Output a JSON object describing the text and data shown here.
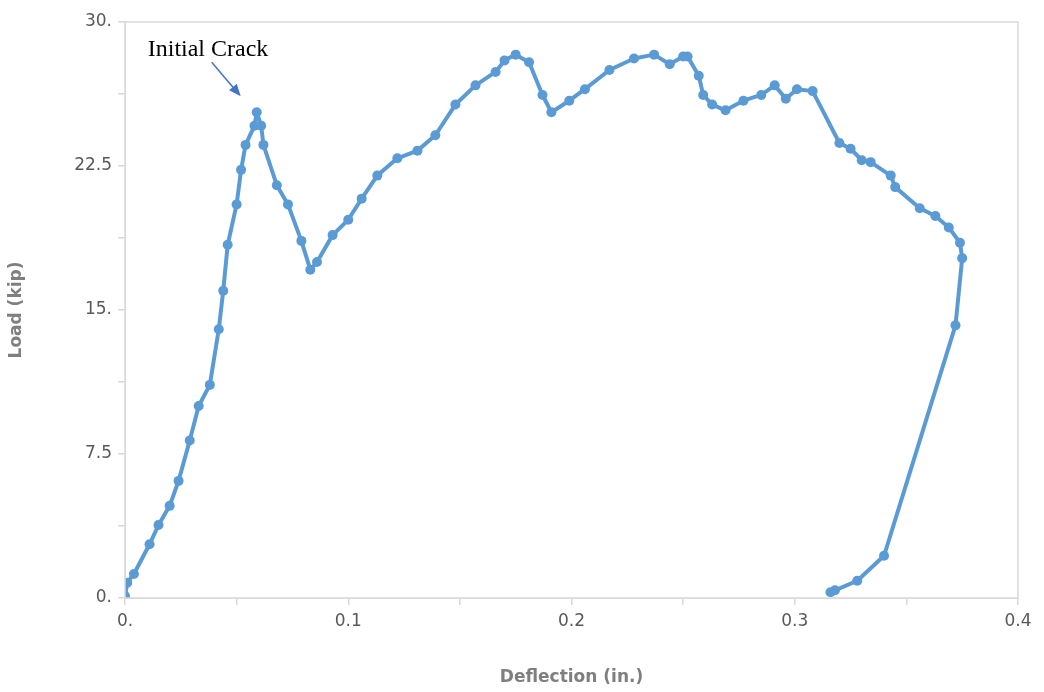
{
  "chart_data": {
    "type": "line",
    "xlabel": "Deflection (in.)",
    "ylabel": "Load (kip)",
    "xlim": [
      0,
      0.4
    ],
    "ylim": [
      0,
      30
    ],
    "xticks": [
      {
        "value": 0,
        "label": "0."
      },
      {
        "value": 0.05,
        "label": null
      },
      0.1,
      {
        "value": 0.15,
        "label": null
      },
      0.2,
      {
        "value": 0.25,
        "label": null
      },
      0.3,
      {
        "value": 0.35,
        "label": null
      },
      0.4
    ],
    "yticks": [
      {
        "value": 0,
        "label": "0."
      },
      {
        "value": 3.75,
        "label": null
      },
      7.5,
      {
        "value": 11.25,
        "label": null
      },
      {
        "value": 15,
        "label": "15."
      },
      {
        "value": 18.75,
        "label": null
      },
      22.5,
      {
        "value": 26.25,
        "label": null
      },
      {
        "value": 30,
        "label": "30."
      }
    ],
    "grid": false,
    "legend": false,
    "marker": "circle",
    "line_style": "solid",
    "annotations": [
      {
        "text": "Initial Crack",
        "x": 0.059,
        "y": 25.3
      }
    ],
    "series": [
      {
        "color": "#5b9bd5",
        "x": [
          0,
          0.001,
          0.004,
          0.011,
          0.015,
          0.02,
          0.024,
          0.029,
          0.033,
          0.038,
          0.042,
          0.044,
          0.046,
          0.05,
          0.052,
          0.054,
          0.058,
          0.059,
          0.061,
          0.062,
          0.068,
          0.073,
          0.079,
          0.083,
          0.086,
          0.093,
          0.1,
          0.106,
          0.113,
          0.122,
          0.131,
          0.139,
          0.148,
          0.157,
          0.166,
          0.17,
          0.175,
          0.181,
          0.187,
          0.191,
          0.199,
          0.206,
          0.217,
          0.228,
          0.237,
          0.244,
          0.25,
          0.252,
          0.257,
          0.259,
          0.263,
          0.269,
          0.277,
          0.285,
          0.291,
          0.296,
          0.301,
          0.308,
          0.32,
          0.325,
          0.33,
          0.334,
          0.343,
          0.345,
          0.356,
          0.363,
          0.369,
          0.374,
          0.375,
          0.372,
          0.34,
          0.328,
          0.318,
          0.316
        ],
        "values": [
          0.1,
          0.8,
          1.25,
          2.8,
          3.8,
          4.8,
          6.1,
          8.2,
          10,
          11.1,
          14,
          16,
          18.4,
          20.5,
          22.3,
          23.6,
          24.6,
          25.3,
          24.6,
          23.6,
          21.5,
          20.5,
          18.6,
          17.1,
          17.5,
          18.9,
          19.7,
          20.8,
          22,
          22.9,
          23.3,
          24.1,
          25.7,
          26.7,
          27.4,
          28,
          28.3,
          27.9,
          26.2,
          25.3,
          25.9,
          26.5,
          27.5,
          28.1,
          28.3,
          27.8,
          28.2,
          28.2,
          27.2,
          26.2,
          25.7,
          25.4,
          25.9,
          26.2,
          26.7,
          26,
          26.5,
          26.4,
          23.7,
          23.4,
          22.8,
          22.7,
          22,
          21.4,
          20.3,
          19.9,
          19.3,
          18.5,
          17.7,
          14.2,
          2.2,
          0.9,
          0.4,
          0.3
        ]
      }
    ]
  }
}
